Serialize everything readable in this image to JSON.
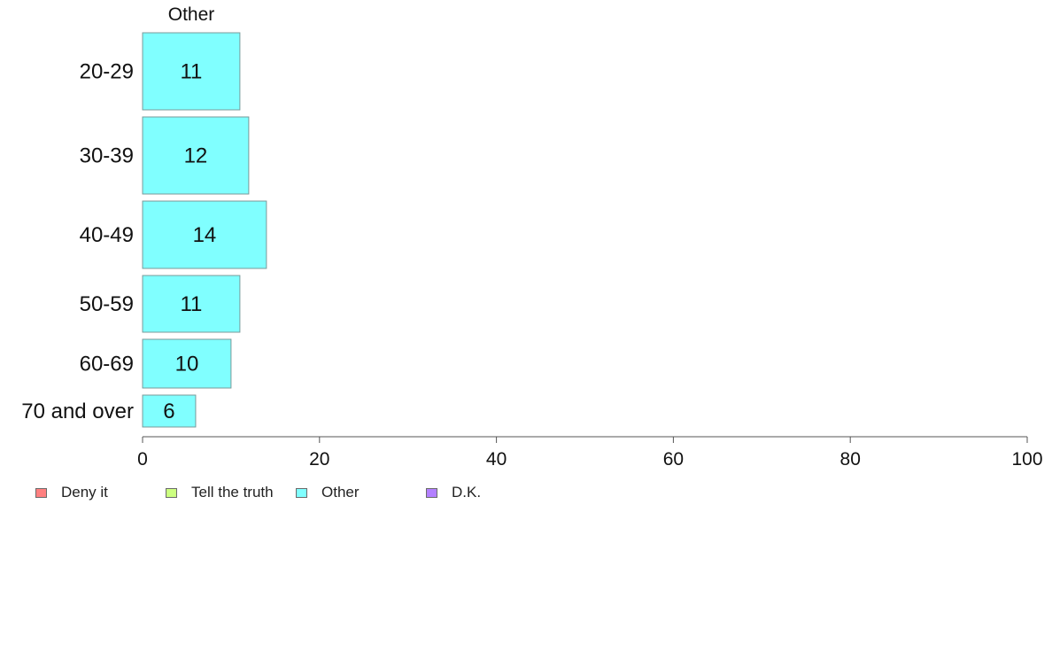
{
  "chart_data": {
    "type": "bar",
    "orientation": "horizontal",
    "panel_title": "Other",
    "categories": [
      "20-29",
      "30-39",
      "40-49",
      "50-59",
      "60-69",
      "70 and over"
    ],
    "series": [
      {
        "name": "Other",
        "values": [
          11,
          12,
          14,
          11,
          10,
          6
        ],
        "color": "#80ffff"
      }
    ],
    "xlim": [
      0,
      100
    ],
    "xticks": [
      0,
      20,
      40,
      60,
      80,
      100
    ],
    "grid": false,
    "legend_position": "bottom-left",
    "legend": [
      {
        "label": "Deny it",
        "color": "#ff8080"
      },
      {
        "label": "Tell the truth",
        "color": "#ccff80"
      },
      {
        "label": "Other",
        "color": "#80ffff"
      },
      {
        "label": "D.K.",
        "color": "#b380ff"
      }
    ]
  }
}
